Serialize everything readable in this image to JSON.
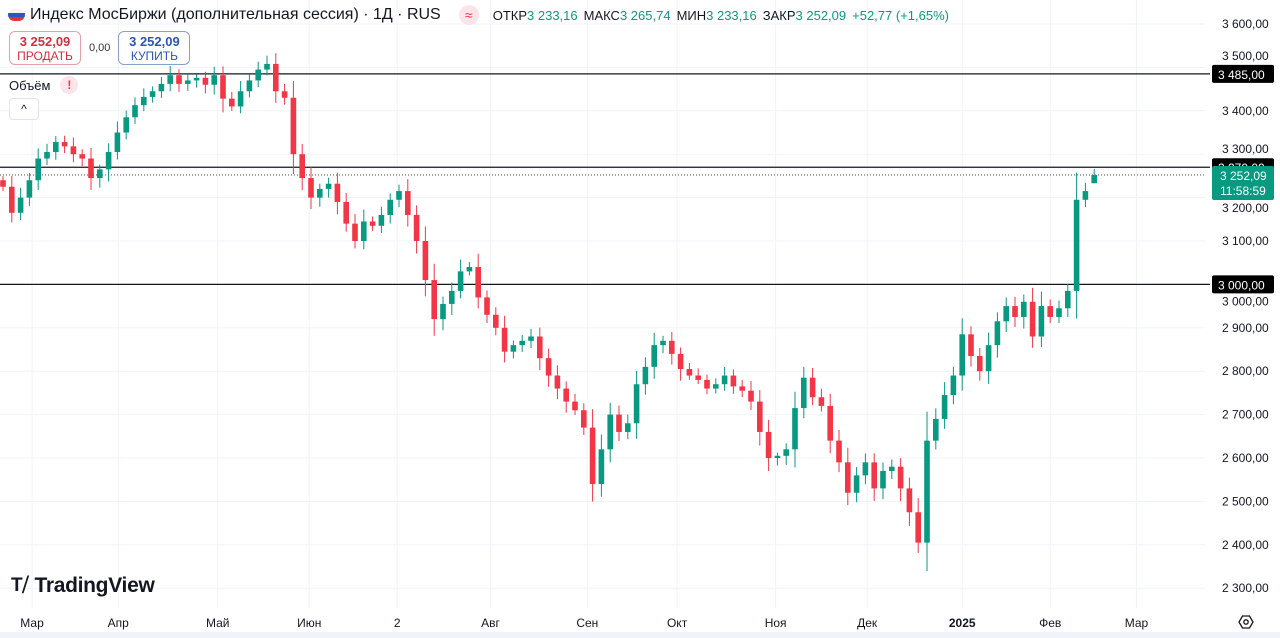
{
  "header": {
    "title": "Индекс МосБиржи (дополнительная сессия) · 1Д · RUS",
    "ohlc": [
      {
        "label": "ОТКР",
        "value": "3 233,16"
      },
      {
        "label": "МАКС",
        "value": "3 265,74"
      },
      {
        "label": "МИН",
        "value": "3 233,16"
      },
      {
        "label": "ЗАКР",
        "value": "3 252,09"
      }
    ],
    "change": "+52,77 (+1,65%)",
    "approx_icon": "≈"
  },
  "trade": {
    "sell_price": "3 252,09",
    "sell_label": "ПРОДАТЬ",
    "spread": "0,00",
    "buy_price": "3 252,09",
    "buy_label": "КУПИТЬ"
  },
  "volume": {
    "label": "Объём",
    "warning": "!"
  },
  "collapse_icon": "^",
  "logo": {
    "text": "TradingView",
    "mark": "TV"
  },
  "colors": {
    "up": "#089981",
    "down": "#f23645",
    "grid": "#f0f3fa",
    "line": "#131722"
  },
  "chart_data": {
    "type": "candlestick",
    "title": "Индекс МосБиржи (дополнительная сессия) · 1Д · RUS",
    "ylim": [
      2270,
      3640
    ],
    "yticks": [
      3600,
      3500,
      3400,
      3300,
      3200,
      3100,
      3000,
      2900,
      2800,
      2700,
      2600,
      2500,
      2400,
      2300
    ],
    "ytick_labels": [
      "3 600,00",
      "3 500,00",
      "3 400,00",
      "3 300,00",
      "3 200,00",
      "3 100,00",
      "3 000,00",
      "2 900,00",
      "2 800,00",
      "2 700,00",
      "2 600,00",
      "2 500,00",
      "2 400,00",
      "2 300,00"
    ],
    "xticks": [
      {
        "label": "Мар",
        "index": 3.3,
        "bold": false
      },
      {
        "label": "Апр",
        "index": 13.1,
        "bold": false
      },
      {
        "label": "Май",
        "index": 24.4,
        "bold": false
      },
      {
        "label": "Июн",
        "index": 34.8,
        "bold": false
      },
      {
        "label": "2",
        "index": 44.8,
        "bold": false
      },
      {
        "label": "Авг",
        "index": 55.4,
        "bold": false
      },
      {
        "label": "Сен",
        "index": 66.4,
        "bold": false
      },
      {
        "label": "Окт",
        "index": 76.6,
        "bold": false
      },
      {
        "label": "Ноя",
        "index": 87.8,
        "bold": false
      },
      {
        "label": "Дек",
        "index": 98.2,
        "bold": false
      },
      {
        "label": "2025",
        "index": 109,
        "bold": true
      },
      {
        "label": "Фев",
        "index": 119,
        "bold": false
      },
      {
        "label": "Мар",
        "index": 128.8,
        "bold": false
      }
    ],
    "closes": [
      3225,
      3165,
      3200,
      3240,
      3290,
      3305,
      3328,
      3318,
      3300,
      3290,
      3245,
      3265,
      3305,
      3350,
      3385,
      3413,
      3432,
      3445,
      3462,
      3482,
      3462,
      3470,
      3476,
      3460,
      3482,
      3428,
      3410,
      3445,
      3470,
      3495,
      3508,
      3445,
      3430,
      3300,
      3245,
      3200,
      3220,
      3232,
      3190,
      3140,
      3100,
      3145,
      3135,
      3160,
      3195,
      3215,
      3160,
      3100,
      3010,
      2920,
      2955,
      2985,
      3030,
      3040,
      2970,
      2930,
      2900,
      2845,
      2860,
      2870,
      2880,
      2830,
      2790,
      2760,
      2730,
      2710,
      2670,
      2540,
      2620,
      2700,
      2660,
      2680,
      2770,
      2810,
      2860,
      2870,
      2840,
      2805,
      2790,
      2780,
      2760,
      2770,
      2790,
      2765,
      2755,
      2730,
      2660,
      2600,
      2605,
      2620,
      2715,
      2785,
      2740,
      2720,
      2640,
      2590,
      2520,
      2560,
      2590,
      2530,
      2570,
      2580,
      2530,
      2475,
      2405,
      2640,
      2690,
      2745,
      2790,
      2885,
      2835,
      2800,
      2860,
      2915,
      2950,
      2925,
      2960,
      2880,
      2950,
      2925,
      2945,
      2985,
      3195,
      3215,
      3252.09
    ],
    "first_open": 3240,
    "last": {
      "open": 3233.16,
      "high": 3265.74,
      "low": 3233.16,
      "close": 3252.09
    },
    "hlines": [
      {
        "value": 3485,
        "label": "3 485,00"
      },
      {
        "value": 3270,
        "label": "3 270,00"
      },
      {
        "value": 3000,
        "label": "3 000,00"
      }
    ],
    "last_price": {
      "value": 3252.09,
      "label": "3 252,09",
      "countdown": "11:58:59"
    }
  }
}
